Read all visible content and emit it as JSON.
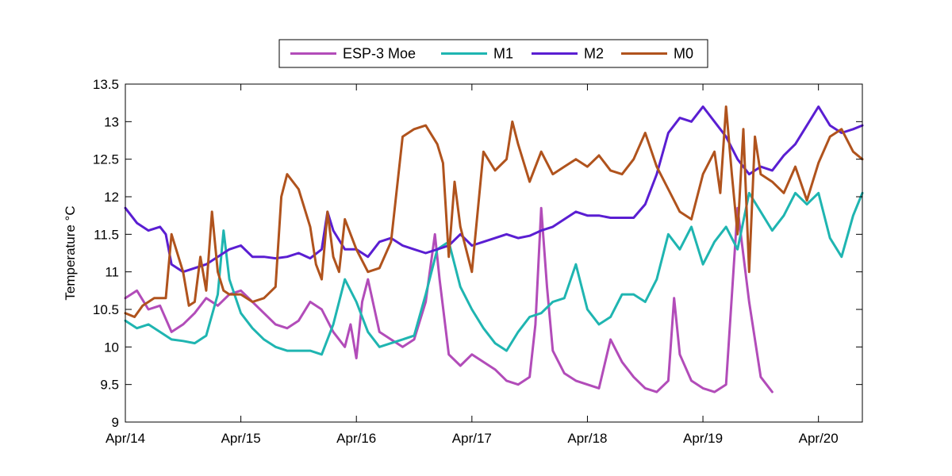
{
  "chart_data": {
    "type": "line",
    "title": "",
    "xlabel": "",
    "ylabel": "Temperature °C",
    "xlim": [
      0,
      6.38
    ],
    "ylim": [
      9,
      13.5
    ],
    "x_ticks": [
      {
        "value": 0,
        "label": "Apr/14"
      },
      {
        "value": 1,
        "label": "Apr/15"
      },
      {
        "value": 2,
        "label": "Apr/16"
      },
      {
        "value": 3,
        "label": "Apr/17"
      },
      {
        "value": 4,
        "label": "Apr/18"
      },
      {
        "value": 5,
        "label": "Apr/19"
      },
      {
        "value": 6,
        "label": "Apr/20"
      }
    ],
    "y_ticks": [
      {
        "value": 9,
        "label": "9"
      },
      {
        "value": 9.5,
        "label": "9.5"
      },
      {
        "value": 10,
        "label": "10"
      },
      {
        "value": 10.5,
        "label": "10.5"
      },
      {
        "value": 11,
        "label": "11"
      },
      {
        "value": 11.5,
        "label": "11.5"
      },
      {
        "value": 12,
        "label": "12"
      },
      {
        "value": 12.5,
        "label": "12.5"
      },
      {
        "value": 13,
        "label": "13"
      },
      {
        "value": 13.5,
        "label": "13.5"
      }
    ],
    "legend_position": "top-center",
    "series": [
      {
        "name": "ESP-3 Moe",
        "color": "#b24cb9",
        "x": [
          0,
          0.1,
          0.2,
          0.3,
          0.4,
          0.5,
          0.6,
          0.7,
          0.8,
          0.9,
          1.0,
          1.1,
          1.2,
          1.3,
          1.4,
          1.5,
          1.6,
          1.7,
          1.8,
          1.9,
          1.95,
          2.0,
          2.05,
          2.1,
          2.2,
          2.3,
          2.4,
          2.5,
          2.6,
          2.68,
          2.72,
          2.8,
          2.9,
          3.0,
          3.1,
          3.2,
          3.3,
          3.4,
          3.5,
          3.55,
          3.6,
          3.65,
          3.7,
          3.8,
          3.9,
          4.0,
          4.1,
          4.2,
          4.3,
          4.4,
          4.5,
          4.6,
          4.7,
          4.75,
          4.8,
          4.9,
          5.0,
          5.1,
          5.2,
          5.3,
          5.4,
          5.5,
          5.6
        ],
        "values": [
          10.65,
          10.75,
          10.5,
          10.55,
          10.2,
          10.3,
          10.45,
          10.65,
          10.55,
          10.7,
          10.75,
          10.6,
          10.45,
          10.3,
          10.25,
          10.35,
          10.6,
          10.5,
          10.2,
          10.0,
          10.3,
          9.85,
          10.6,
          10.9,
          10.2,
          10.1,
          10.0,
          10.1,
          10.6,
          11.5,
          10.9,
          9.9,
          9.75,
          9.9,
          9.8,
          9.7,
          9.55,
          9.5,
          9.6,
          10.3,
          11.85,
          10.8,
          9.95,
          9.65,
          9.55,
          9.5,
          9.45,
          10.1,
          9.8,
          9.6,
          9.45,
          9.4,
          9.55,
          10.65,
          9.9,
          9.55,
          9.45,
          9.4,
          9.5,
          11.85,
          10.6,
          9.6,
          9.4
        ]
      },
      {
        "name": "M1",
        "color": "#1fb5b1",
        "x": [
          0,
          0.1,
          0.2,
          0.3,
          0.4,
          0.5,
          0.6,
          0.7,
          0.8,
          0.85,
          0.9,
          1.0,
          1.1,
          1.2,
          1.3,
          1.4,
          1.5,
          1.6,
          1.7,
          1.8,
          1.9,
          2.0,
          2.1,
          2.2,
          2.3,
          2.4,
          2.5,
          2.6,
          2.7,
          2.8,
          2.9,
          3.0,
          3.1,
          3.2,
          3.3,
          3.4,
          3.5,
          3.6,
          3.7,
          3.8,
          3.9,
          4.0,
          4.1,
          4.2,
          4.3,
          4.4,
          4.5,
          4.6,
          4.7,
          4.8,
          4.9,
          5.0,
          5.1,
          5.2,
          5.3,
          5.4,
          5.5,
          5.6,
          5.7,
          5.8,
          5.9,
          6.0,
          6.1,
          6.2,
          6.3,
          6.38
        ],
        "values": [
          10.35,
          10.25,
          10.3,
          10.2,
          10.1,
          10.08,
          10.05,
          10.15,
          10.7,
          11.55,
          10.9,
          10.45,
          10.25,
          10.1,
          10.0,
          9.95,
          9.95,
          9.95,
          9.9,
          10.3,
          10.9,
          10.6,
          10.2,
          10.0,
          10.05,
          10.1,
          10.15,
          10.7,
          11.3,
          11.4,
          10.8,
          10.5,
          10.25,
          10.05,
          9.95,
          10.2,
          10.4,
          10.45,
          10.6,
          10.65,
          11.1,
          10.5,
          10.3,
          10.4,
          10.7,
          10.7,
          10.6,
          10.9,
          11.5,
          11.3,
          11.6,
          11.1,
          11.4,
          11.6,
          11.3,
          12.05,
          11.8,
          11.55,
          11.75,
          12.05,
          11.9,
          12.05,
          11.45,
          11.2,
          11.75,
          12.05
        ]
      },
      {
        "name": "M2",
        "color": "#5a1ed2",
        "x": [
          0,
          0.1,
          0.2,
          0.3,
          0.35,
          0.4,
          0.5,
          0.6,
          0.7,
          0.8,
          0.9,
          1.0,
          1.1,
          1.2,
          1.3,
          1.4,
          1.5,
          1.6,
          1.7,
          1.75,
          1.8,
          1.9,
          2.0,
          2.1,
          2.2,
          2.3,
          2.4,
          2.5,
          2.6,
          2.7,
          2.8,
          2.9,
          3.0,
          3.1,
          3.2,
          3.3,
          3.4,
          3.5,
          3.6,
          3.7,
          3.8,
          3.9,
          4.0,
          4.1,
          4.2,
          4.3,
          4.4,
          4.5,
          4.6,
          4.7,
          4.8,
          4.9,
          5.0,
          5.1,
          5.2,
          5.3,
          5.4,
          5.5,
          5.6,
          5.7,
          5.8,
          5.9,
          6.0,
          6.1,
          6.2,
          6.3,
          6.38
        ],
        "values": [
          11.85,
          11.65,
          11.55,
          11.6,
          11.5,
          11.1,
          11.0,
          11.05,
          11.1,
          11.2,
          11.3,
          11.35,
          11.2,
          11.2,
          11.18,
          11.2,
          11.25,
          11.18,
          11.3,
          11.8,
          11.55,
          11.3,
          11.3,
          11.2,
          11.4,
          11.45,
          11.35,
          11.3,
          11.25,
          11.3,
          11.35,
          11.5,
          11.35,
          11.4,
          11.45,
          11.5,
          11.45,
          11.48,
          11.55,
          11.6,
          11.7,
          11.8,
          11.75,
          11.75,
          11.72,
          11.72,
          11.72,
          11.9,
          12.3,
          12.85,
          13.05,
          13.0,
          13.2,
          13.0,
          12.8,
          12.5,
          12.3,
          12.4,
          12.35,
          12.55,
          12.7,
          12.95,
          13.2,
          12.95,
          12.85,
          12.9,
          12.95
        ]
      },
      {
        "name": "M0",
        "color": "#b0531d",
        "x": [
          0,
          0.08,
          0.15,
          0.25,
          0.35,
          0.4,
          0.5,
          0.55,
          0.6,
          0.65,
          0.7,
          0.75,
          0.8,
          0.85,
          0.9,
          1.0,
          1.1,
          1.2,
          1.3,
          1.35,
          1.4,
          1.5,
          1.6,
          1.65,
          1.7,
          1.75,
          1.8,
          1.85,
          1.9,
          2.0,
          2.1,
          2.2,
          2.3,
          2.4,
          2.5,
          2.6,
          2.7,
          2.75,
          2.8,
          2.85,
          2.9,
          3.0,
          3.1,
          3.2,
          3.3,
          3.35,
          3.4,
          3.5,
          3.6,
          3.7,
          3.8,
          3.9,
          4.0,
          4.1,
          4.2,
          4.3,
          4.4,
          4.5,
          4.6,
          4.7,
          4.8,
          4.9,
          5.0,
          5.1,
          5.15,
          5.2,
          5.25,
          5.3,
          5.35,
          5.4,
          5.45,
          5.5,
          5.6,
          5.7,
          5.8,
          5.9,
          6.0,
          6.1,
          6.2,
          6.3,
          6.38
        ],
        "values": [
          10.45,
          10.4,
          10.55,
          10.65,
          10.65,
          11.5,
          11.0,
          10.55,
          10.6,
          11.2,
          10.75,
          11.8,
          11.0,
          10.75,
          10.7,
          10.7,
          10.6,
          10.65,
          10.8,
          12.0,
          12.3,
          12.1,
          11.6,
          11.1,
          10.9,
          11.8,
          11.2,
          11.0,
          11.7,
          11.3,
          11.0,
          11.05,
          11.4,
          12.8,
          12.9,
          12.95,
          12.7,
          12.45,
          11.2,
          12.2,
          11.6,
          11.0,
          12.6,
          12.35,
          12.5,
          13.0,
          12.7,
          12.2,
          12.6,
          12.3,
          12.4,
          12.5,
          12.4,
          12.55,
          12.35,
          12.3,
          12.5,
          12.85,
          12.4,
          12.1,
          11.8,
          11.7,
          12.3,
          12.6,
          12.05,
          13.2,
          12.3,
          11.5,
          12.9,
          11.0,
          12.8,
          12.3,
          12.2,
          12.05,
          12.4,
          11.95,
          12.45,
          12.8,
          12.9,
          12.6,
          12.5
        ]
      }
    ]
  }
}
